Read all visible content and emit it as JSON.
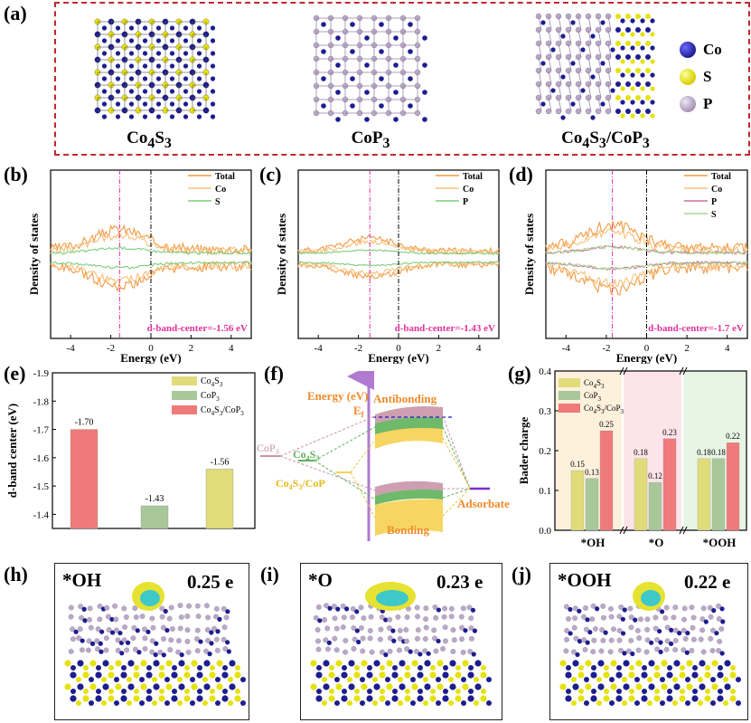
{
  "figure": {
    "labels": [
      "(a)",
      "(b)",
      "(c)",
      "(d)",
      "(e)",
      "(f)",
      "(g)",
      "(h)",
      "(i)",
      "(j)"
    ]
  },
  "panel_a": {
    "structures": [
      {
        "name_html": "Co<sub>4</sub>S<sub>3</sub>"
      },
      {
        "name_html": "CoP<sub>3</sub>"
      },
      {
        "name_html": "Co<sub>4</sub>S<sub>3</sub>/CoP<sub>3</sub>"
      }
    ],
    "legend": [
      {
        "label": "Co",
        "color": "#1d1d8f"
      },
      {
        "label": "S",
        "color": "#e6e20f"
      },
      {
        "label": "P",
        "color": "#b9a9c6"
      }
    ]
  },
  "dos_common": {
    "ylabel": "Density of states",
    "xlabel": "Energy (eV)",
    "xticks": [
      "-4",
      "-2",
      "0",
      "2",
      "4"
    ]
  },
  "chart_data": [
    {
      "id": "b",
      "type": "line",
      "title": "",
      "xlabel": "Energy (eV)",
      "ylabel": "Density of states",
      "xlim": [
        -5,
        5
      ],
      "legend": [
        "Total",
        "Co",
        "S"
      ],
      "series_colors": [
        "#f29a45",
        "#f7c07a",
        "#7ccd7c"
      ],
      "d_band_center": -1.56,
      "annotation": "d-band-center=-1.56 eV"
    },
    {
      "id": "c",
      "type": "line",
      "title": "",
      "xlabel": "Energy (eV)",
      "ylabel": "Density of states",
      "xlim": [
        -5,
        5
      ],
      "legend": [
        "Total",
        "Co",
        "P"
      ],
      "series_colors": [
        "#f29a45",
        "#f7c07a",
        "#7ccd7c"
      ],
      "d_band_center": -1.43,
      "annotation": "d-band-center=-1.43 eV"
    },
    {
      "id": "d",
      "type": "line",
      "title": "",
      "xlabel": "Energy (eV)",
      "ylabel": "Density of states",
      "xlim": [
        -5,
        5
      ],
      "legend": [
        "Total",
        "Co",
        "P",
        "S"
      ],
      "series_colors": [
        "#f29a45",
        "#f7c07a",
        "#d070a0",
        "#a8d890"
      ],
      "d_band_center": -1.7,
      "annotation": "d-band-center=-1.7 eV"
    },
    {
      "id": "e",
      "type": "bar",
      "ylabel": "d-band center (eV)",
      "categories": [
        "Co4S3/CoP3",
        "CoP3",
        "Co4S3"
      ],
      "values": [
        -1.7,
        -1.43,
        -1.56
      ],
      "value_labels": [
        "-1.70",
        "-1.43",
        "-1.56"
      ],
      "colors": [
        "#f07a7a",
        "#a8c89a",
        "#e0dc7a"
      ],
      "ylim": [
        -1.35,
        -1.9
      ],
      "yticks": [
        "-1.9",
        "-1.8",
        "-1.7",
        "-1.6",
        "-1.5",
        "-1.4"
      ],
      "legend": [
        "Co4S3",
        "CoP3",
        "Co4S3/CoP3"
      ]
    },
    {
      "id": "g",
      "type": "bar",
      "ylabel": "Bader charge",
      "categories": [
        "*OH",
        "*O",
        "*OOH"
      ],
      "series": [
        {
          "name": "Co4S3",
          "values": [
            0.15,
            0.18,
            0.18
          ],
          "color": "#e0dc7a"
        },
        {
          "name": "CoP3",
          "values": [
            0.13,
            0.12,
            0.18
          ],
          "color": "#a8c89a"
        },
        {
          "name": "Co4S3/CoP3",
          "values": [
            0.25,
            0.23,
            0.22
          ],
          "color": "#f07a7a"
        }
      ],
      "ylim": [
        0,
        0.4
      ],
      "yticks": [
        "0.0",
        "0.1",
        "0.2",
        "0.3",
        "0.4"
      ]
    }
  ],
  "panel_f": {
    "energy_label": "Energy (eV)",
    "ef_label": "E",
    "ef_sub": "f",
    "antibonding": "Antibonding",
    "bonding": "Bonding",
    "adsorbate": "Adsorbate",
    "cop3": "CoP",
    "cop3_sub": "3",
    "co4s3": "Co",
    "co4s3_sub1": "4",
    "co4s3_s": "S",
    "co4s3_sub2": "3",
    "hetero": "Co",
    "hetero_sub1": "4",
    "hetero_s": "S",
    "hetero_sub2": "3",
    "hetero_rest": "/CoP"
  },
  "panels_hij": [
    {
      "species": "*OH",
      "charge": "0.25 e"
    },
    {
      "species": "*O",
      "charge": "0.23 e"
    },
    {
      "species": "*OOH",
      "charge": "0.22 e"
    }
  ]
}
